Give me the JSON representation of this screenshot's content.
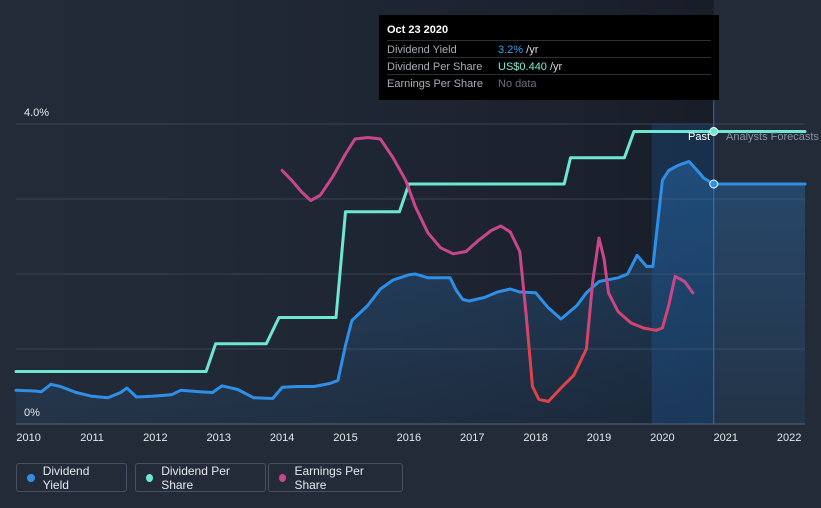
{
  "tooltip": {
    "date": "Oct 23 2020",
    "rows": [
      {
        "label": "Dividend Yield",
        "value": "3.2%",
        "unit": " /yr"
      },
      {
        "label": "Dividend Per Share",
        "value": "US$0.440",
        "unit": " /yr"
      },
      {
        "label": "Earnings Per Share",
        "value": "No data",
        "unit": ""
      }
    ]
  },
  "region_labels": {
    "past": "Past",
    "forecast": "Analysts Forecasts"
  },
  "legend": [
    {
      "label": "Dividend Yield",
      "color": "#2f8fe6"
    },
    {
      "label": "Dividend Per Share",
      "color": "#6ee7d2"
    },
    {
      "label": "Earnings Per Share",
      "color": "#c8478c"
    }
  ],
  "chart_data": {
    "type": "line",
    "x_tick_labels": [
      "2010",
      "2011",
      "2012",
      "2013",
      "2014",
      "2015",
      "2016",
      "2017",
      "2018",
      "2019",
      "2020",
      "2021",
      "2022"
    ],
    "y_tick_labels": [
      "4.0%",
      "0%"
    ],
    "ylim": [
      0,
      4.0
    ],
    "xlim": [
      2009.8,
      2022.25
    ],
    "past_end": 2020.81,
    "highlight_start": 2019.83,
    "series": [
      {
        "name": "Dividend Yield",
        "color": "#2f8fe6",
        "points": [
          [
            2009.8,
            0.45
          ],
          [
            2010.1,
            0.44
          ],
          [
            2010.2,
            0.43
          ],
          [
            2010.35,
            0.53
          ],
          [
            2010.5,
            0.5
          ],
          [
            2010.75,
            0.42
          ],
          [
            2011.0,
            0.37
          ],
          [
            2011.25,
            0.35
          ],
          [
            2011.45,
            0.42
          ],
          [
            2011.55,
            0.48
          ],
          [
            2011.7,
            0.36
          ],
          [
            2011.95,
            0.37
          ],
          [
            2012.25,
            0.39
          ],
          [
            2012.4,
            0.45
          ],
          [
            2012.7,
            0.43
          ],
          [
            2012.9,
            0.42
          ],
          [
            2013.05,
            0.51
          ],
          [
            2013.3,
            0.46
          ],
          [
            2013.55,
            0.35
          ],
          [
            2013.85,
            0.34
          ],
          [
            2014.0,
            0.49
          ],
          [
            2014.25,
            0.5
          ],
          [
            2014.5,
            0.5
          ],
          [
            2014.75,
            0.54
          ],
          [
            2014.88,
            0.58
          ],
          [
            2015.0,
            1.05
          ],
          [
            2015.1,
            1.38
          ],
          [
            2015.35,
            1.58
          ],
          [
            2015.55,
            1.8
          ],
          [
            2015.75,
            1.92
          ],
          [
            2016.0,
            1.99
          ],
          [
            2016.1,
            2.0
          ],
          [
            2016.3,
            1.95
          ],
          [
            2016.5,
            1.95
          ],
          [
            2016.65,
            1.95
          ],
          [
            2016.75,
            1.78
          ],
          [
            2016.85,
            1.66
          ],
          [
            2016.95,
            1.64
          ],
          [
            2017.2,
            1.69
          ],
          [
            2017.4,
            1.76
          ],
          [
            2017.6,
            1.8
          ],
          [
            2017.75,
            1.76
          ],
          [
            2018.0,
            1.75
          ],
          [
            2018.2,
            1.55
          ],
          [
            2018.4,
            1.4
          ],
          [
            2018.65,
            1.58
          ],
          [
            2018.8,
            1.75
          ],
          [
            2019.0,
            1.9
          ],
          [
            2019.3,
            1.95
          ],
          [
            2019.45,
            2.0
          ],
          [
            2019.6,
            2.25
          ],
          [
            2019.75,
            2.1
          ],
          [
            2019.85,
            2.1
          ],
          [
            2020.0,
            3.25
          ],
          [
            2020.1,
            3.38
          ],
          [
            2020.25,
            3.45
          ],
          [
            2020.42,
            3.5
          ],
          [
            2020.55,
            3.38
          ],
          [
            2020.65,
            3.28
          ],
          [
            2020.81,
            3.2
          ],
          [
            2022.25,
            3.2
          ]
        ]
      },
      {
        "name": "Dividend Per Share",
        "color": "#6ee7d2",
        "points": [
          [
            2009.8,
            0.7
          ],
          [
            2012.8,
            0.7
          ],
          [
            2012.95,
            1.07
          ],
          [
            2013.75,
            1.07
          ],
          [
            2013.95,
            1.42
          ],
          [
            2014.85,
            1.42
          ],
          [
            2015.0,
            2.83
          ],
          [
            2015.85,
            2.83
          ],
          [
            2016.0,
            3.2
          ],
          [
            2018.45,
            3.2
          ],
          [
            2018.55,
            3.55
          ],
          [
            2019.4,
            3.55
          ],
          [
            2019.55,
            3.9
          ],
          [
            2020.81,
            3.9
          ],
          [
            2022.25,
            3.9
          ]
        ]
      },
      {
        "name": "Earnings Per Share",
        "color": "#c8478c",
        "points": [
          [
            2014.0,
            3.38
          ],
          [
            2014.15,
            3.25
          ],
          [
            2014.3,
            3.1
          ],
          [
            2014.45,
            2.98
          ],
          [
            2014.6,
            3.05
          ],
          [
            2014.8,
            3.3
          ],
          [
            2015.0,
            3.6
          ],
          [
            2015.15,
            3.8
          ],
          [
            2015.35,
            3.82
          ],
          [
            2015.55,
            3.8
          ],
          [
            2015.75,
            3.55
          ],
          [
            2015.95,
            3.25
          ],
          [
            2016.1,
            2.9
          ],
          [
            2016.3,
            2.55
          ],
          [
            2016.5,
            2.35
          ],
          [
            2016.7,
            2.27
          ],
          [
            2016.9,
            2.3
          ],
          [
            2017.1,
            2.45
          ],
          [
            2017.3,
            2.58
          ],
          [
            2017.45,
            2.64
          ],
          [
            2017.6,
            2.56
          ],
          [
            2017.75,
            2.3
          ],
          [
            2017.85,
            1.45
          ],
          [
            2017.95,
            0.5
          ],
          [
            2018.05,
            0.33
          ],
          [
            2018.2,
            0.3
          ],
          [
            2018.4,
            0.48
          ],
          [
            2018.6,
            0.65
          ],
          [
            2018.8,
            1.0
          ],
          [
            2018.9,
            1.9
          ],
          [
            2019.0,
            2.48
          ],
          [
            2019.08,
            2.2
          ],
          [
            2019.15,
            1.75
          ],
          [
            2019.3,
            1.5
          ],
          [
            2019.5,
            1.35
          ],
          [
            2019.7,
            1.28
          ],
          [
            2019.9,
            1.25
          ],
          [
            2020.0,
            1.28
          ],
          [
            2020.1,
            1.58
          ],
          [
            2020.2,
            1.97
          ],
          [
            2020.35,
            1.9
          ],
          [
            2020.48,
            1.75
          ]
        ]
      }
    ]
  }
}
